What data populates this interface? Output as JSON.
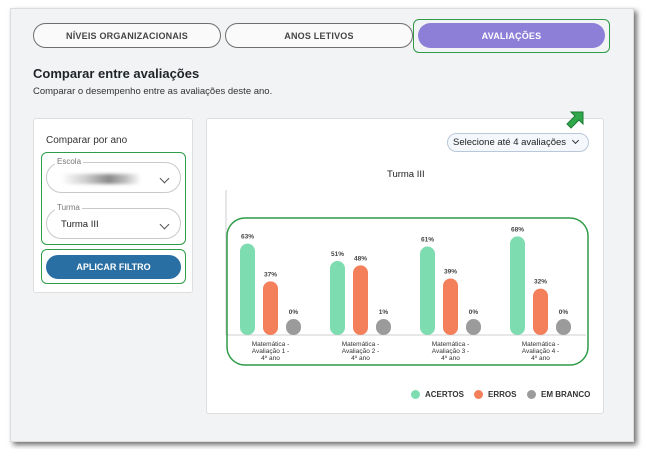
{
  "tabs": [
    {
      "label": "NÍVEIS ORGANIZACIONAIS",
      "active": false
    },
    {
      "label": "ANOS LETIVOS",
      "active": false
    },
    {
      "label": "AVALIAÇÕES",
      "active": true
    }
  ],
  "header": {
    "title": "Comparar entre avaliações",
    "subtitle": "Comparar o desempenho entre as avaliações deste ano."
  },
  "filters": {
    "title": "Comparar por ano",
    "school_label": "Escola",
    "school_value": "",
    "class_label": "Turma",
    "class_value": "Turma III",
    "apply_label": "APLICAR FILTRO"
  },
  "chart_controls": {
    "select_label": "Selecione até 4 avaliações"
  },
  "colors": {
    "accent": "#8d7fd8",
    "button": "#2a6fa3",
    "highlight": "#2e9c48",
    "acertos": "#7ddcb0",
    "erros": "#f47f5b",
    "em_branco": "#9b9b9b"
  },
  "chart_data": {
    "type": "bar",
    "title": "Turma III",
    "categories": [
      [
        "Matemática -",
        "Avaliação 1 -",
        "4º ano"
      ],
      [
        "Matemática -",
        "Avaliação 2 -",
        "4º ano"
      ],
      [
        "Matemática -",
        "Avaliação 3 -",
        "4º ano"
      ],
      [
        "Matemática -",
        "Avaliação 4 -",
        "4º ano"
      ]
    ],
    "series": [
      {
        "name": "ACERTOS",
        "values": [
          63,
          51,
          61,
          68
        ],
        "color": "#7ddcb0"
      },
      {
        "name": "ERROS",
        "values": [
          37,
          48,
          39,
          32
        ],
        "color": "#f47f5b"
      },
      {
        "name": "EM BRANCO",
        "values": [
          0,
          1,
          0,
          0
        ],
        "color": "#9b9b9b"
      }
    ],
    "value_suffix": "%",
    "ylim": [
      0,
      100
    ],
    "legend_position": "bottom-right"
  }
}
